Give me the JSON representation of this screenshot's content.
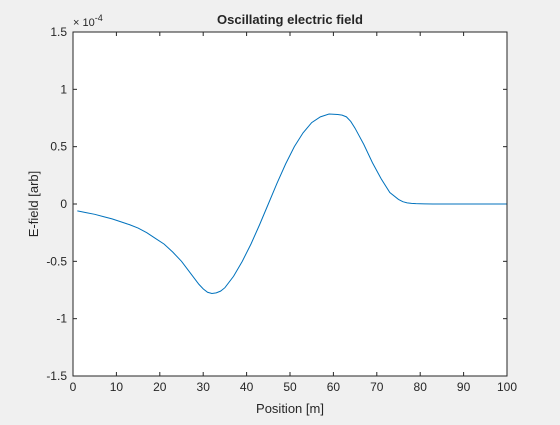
{
  "window": {
    "background": "#f0f0f0"
  },
  "chart_data": {
    "type": "line",
    "title": "Oscillating electric field",
    "xlabel": "Position [m]",
    "ylabel": "E-field [arb]",
    "exponent_label": "× 10",
    "exponent_power": "-4",
    "xlim": [
      0,
      100
    ],
    "ylim": [
      -1.5,
      1.5
    ],
    "y_scale_note": "values shown in units of 1e-4",
    "xticks": [
      0,
      10,
      20,
      30,
      40,
      50,
      60,
      70,
      80,
      90,
      100
    ],
    "xtick_labels": [
      "0",
      "10",
      "20",
      "30",
      "40",
      "50",
      "60",
      "70",
      "80",
      "90",
      "100"
    ],
    "yticks": [
      -1.5,
      -1,
      -0.5,
      0,
      0.5,
      1,
      1.5
    ],
    "ytick_labels": [
      "-1.5",
      "-1",
      "-0.5",
      "0",
      "0.5",
      "1",
      "1.5"
    ],
    "grid": false,
    "line_color": "#0072bd",
    "series": [
      {
        "x": [
          1,
          3,
          5,
          7,
          9,
          11,
          13,
          15,
          17,
          19,
          21,
          23,
          25,
          27,
          29,
          30,
          31,
          32,
          33,
          34,
          35,
          37,
          39,
          41,
          43,
          45,
          47,
          49,
          51,
          53,
          55,
          57,
          59,
          61,
          62,
          63,
          64,
          65,
          67,
          69,
          71,
          73,
          75,
          76,
          77,
          78,
          79,
          80,
          81,
          83,
          85,
          88,
          92,
          96,
          100
        ],
        "y": [
          -0.06,
          -0.075,
          -0.09,
          -0.11,
          -0.13,
          -0.155,
          -0.18,
          -0.21,
          -0.25,
          -0.3,
          -0.35,
          -0.42,
          -0.5,
          -0.6,
          -0.7,
          -0.74,
          -0.77,
          -0.78,
          -0.775,
          -0.76,
          -0.73,
          -0.63,
          -0.5,
          -0.35,
          -0.18,
          0.0,
          0.18,
          0.35,
          0.5,
          0.62,
          0.71,
          0.76,
          0.785,
          0.78,
          0.775,
          0.76,
          0.72,
          0.66,
          0.52,
          0.36,
          0.22,
          0.1,
          0.04,
          0.02,
          0.01,
          0.005,
          0.003,
          0.002,
          0.001,
          0.0,
          0.0,
          0.0,
          0.0,
          0.0,
          0.0
        ]
      }
    ]
  }
}
